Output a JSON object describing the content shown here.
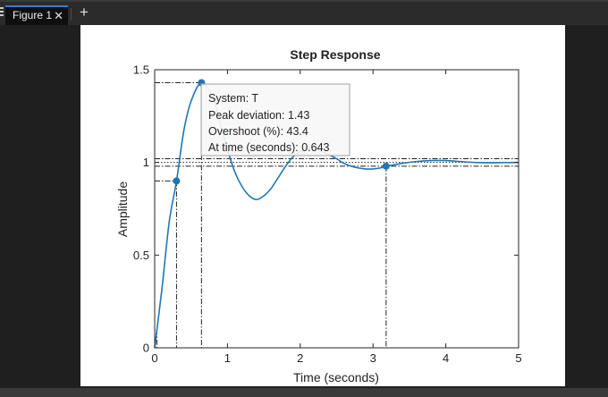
{
  "window": {
    "tab_label": "Figure 1",
    "close_glyph": "✕",
    "add_glyph": "+"
  },
  "chart_data": {
    "type": "line",
    "title": "Step Response",
    "xlabel": "Time (seconds)",
    "ylabel": "Amplitude",
    "xlim": [
      0,
      5
    ],
    "ylim": [
      0,
      1.5
    ],
    "xticks": [
      0,
      1,
      2,
      3,
      4,
      5
    ],
    "xtick_labels": [
      "0",
      "1",
      "2",
      "3",
      "4",
      "5"
    ],
    "yticks": [
      0,
      0.5,
      1,
      1.5
    ],
    "ytick_labels": [
      "0",
      "0.5",
      "1",
      "1.5"
    ],
    "grid": false,
    "series_color": "#1f77b4",
    "series": [
      {
        "x": [
          0,
          0.1,
          0.2,
          0.3,
          0.4,
          0.5,
          0.643,
          0.8,
          0.9,
          1.0,
          1.1,
          1.2,
          1.3,
          1.4,
          1.5,
          1.6,
          1.7,
          1.8,
          1.9,
          2.0,
          2.1,
          2.2,
          2.3,
          2.4,
          2.5,
          2.6,
          2.7,
          2.8,
          2.9,
          3.0,
          3.1,
          3.2,
          3.4,
          3.6,
          3.8,
          4.0,
          4.2,
          4.4,
          4.6,
          4.8,
          5.0
        ],
        "y": [
          0,
          0.32,
          0.68,
          0.9,
          1.17,
          1.33,
          1.43,
          1.35,
          1.21,
          1.07,
          0.95,
          0.87,
          0.82,
          0.8,
          0.82,
          0.86,
          0.92,
          0.98,
          1.03,
          1.06,
          1.08,
          1.08,
          1.06,
          1.04,
          1.02,
          0.995,
          0.98,
          0.97,
          0.965,
          0.965,
          0.97,
          0.98,
          0.995,
          1.005,
          1.01,
          1.01,
          1.005,
          1.0,
          0.998,
          0.999,
          1.0
        ]
      }
    ],
    "characteristic_points": [
      {
        "name": "rise-time-end",
        "x": 0.3,
        "y": 0.9
      },
      {
        "name": "peak",
        "x": 0.643,
        "y": 1.43
      },
      {
        "name": "settling-time",
        "x": 3.18,
        "y": 0.98
      }
    ],
    "reference_lines": {
      "rise_start_y": 0.1,
      "rise_start_x": 0.03,
      "settle_band": [
        0.98,
        1.02
      ],
      "steady_state": 1.0
    },
    "datatip": {
      "lines": [
        "System: T",
        "Peak deviation: 1.43",
        "Overshoot (%): 43.4",
        "At time (seconds): 0.643"
      ]
    }
  }
}
